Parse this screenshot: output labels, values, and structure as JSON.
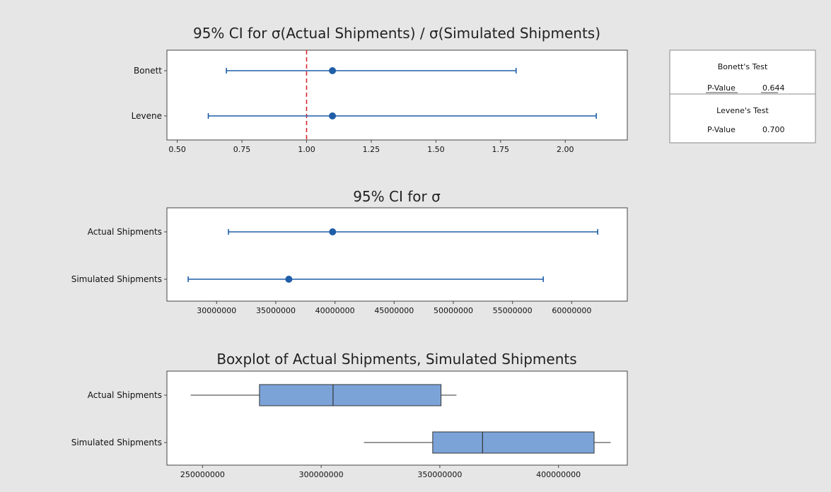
{
  "colors": {
    "background": "#e6e6e6",
    "plot_background": "#ffffff",
    "interval": "#1f5ea8",
    "box_fill": "#7ba3d8",
    "box_stroke": "#333333",
    "reference_line": "#d9262b"
  },
  "chart_data": [
    {
      "id": "ratio",
      "type": "interval",
      "title": "95% CI for σ(Actual Shipments) / σ(Simulated Shipments)",
      "categories": [
        "Bonett",
        "Levene"
      ],
      "intervals": [
        {
          "name": "Bonett",
          "lower": 0.69,
          "estimate": 1.1,
          "upper": 1.81
        },
        {
          "name": "Levene",
          "lower": 0.62,
          "estimate": 1.1,
          "upper": 2.12
        }
      ],
      "reference_line": 1.0,
      "xlim": [
        0.46,
        2.24
      ],
      "ticks": [
        0.5,
        0.75,
        1.0,
        1.25,
        1.5,
        1.75,
        2.0
      ],
      "tick_labels": [
        "0.50",
        "0.75",
        "1.00",
        "1.25",
        "1.50",
        "1.75",
        "2.00"
      ]
    },
    {
      "id": "sigma",
      "type": "interval",
      "title": "95% CI for σ",
      "categories": [
        "Actual Shipments",
        "Simulated Shipments"
      ],
      "intervals": [
        {
          "name": "Actual Shipments",
          "lower": 31000000,
          "estimate": 39800000,
          "upper": 62200000
        },
        {
          "name": "Simulated Shipments",
          "lower": 27600000,
          "estimate": 36100000,
          "upper": 57600000
        }
      ],
      "xlim": [
        25800000,
        64700000
      ],
      "ticks": [
        30000000,
        35000000,
        40000000,
        45000000,
        50000000,
        55000000,
        60000000
      ],
      "tick_labels": [
        "30000000",
        "35000000",
        "40000000",
        "45000000",
        "50000000",
        "55000000",
        "60000000"
      ]
    },
    {
      "id": "box",
      "type": "boxplot",
      "title": "Boxplot of Actual Shipments, Simulated Shipments",
      "categories": [
        "Actual Shipments",
        "Simulated Shipments"
      ],
      "boxes": [
        {
          "name": "Actual Shipments",
          "min": 245000000,
          "q1": 274000000,
          "median": 305000000,
          "q3": 350500000,
          "max": 357000000
        },
        {
          "name": "Simulated Shipments",
          "min": 318000000,
          "q1": 347000000,
          "median": 368000000,
          "q3": 415000000,
          "max": 422000000
        }
      ],
      "xlim": [
        235000000,
        429000000
      ],
      "ticks": [
        250000000,
        300000000,
        350000000,
        400000000
      ],
      "tick_labels": [
        "250000000",
        "300000000",
        "350000000",
        "400000000"
      ]
    }
  ],
  "tests": [
    {
      "title": "Bonett's Test",
      "label": "P-Value",
      "value": "0.644"
    },
    {
      "title": "Levene's Test",
      "label": "P-Value",
      "value": "0.700"
    }
  ]
}
